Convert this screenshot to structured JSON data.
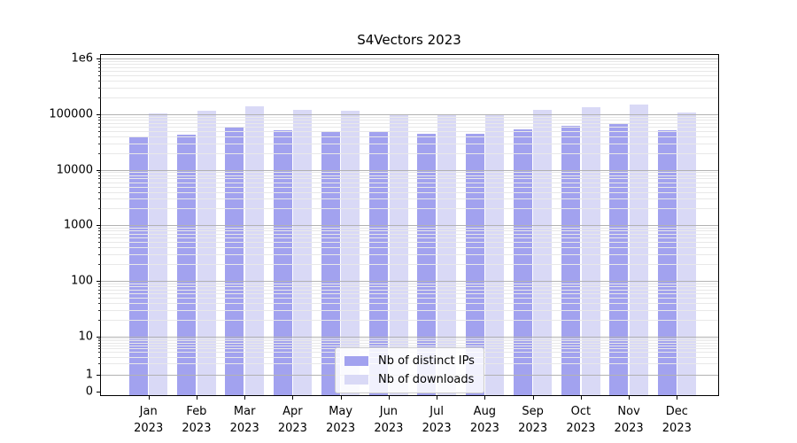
{
  "chart_data": {
    "type": "bar",
    "title": "S4Vectors 2023",
    "xlabel": "",
    "ylabel": "",
    "categories": [
      {
        "month": "Jan",
        "year": "2023"
      },
      {
        "month": "Feb",
        "year": "2023"
      },
      {
        "month": "Mar",
        "year": "2023"
      },
      {
        "month": "Apr",
        "year": "2023"
      },
      {
        "month": "May",
        "year": "2023"
      },
      {
        "month": "Jun",
        "year": "2023"
      },
      {
        "month": "Jul",
        "year": "2023"
      },
      {
        "month": "Aug",
        "year": "2023"
      },
      {
        "month": "Sep",
        "year": "2023"
      },
      {
        "month": "Oct",
        "year": "2023"
      },
      {
        "month": "Nov",
        "year": "2023"
      },
      {
        "month": "Dec",
        "year": "2023"
      }
    ],
    "series": [
      {
        "name": "Nb of distinct IPs",
        "color": "#a2a2ef",
        "values": [
          40000,
          42000,
          60000,
          51000,
          50000,
          47000,
          44000,
          45000,
          53000,
          62000,
          67000,
          51000
        ]
      },
      {
        "name": "Nb of downloads",
        "color": "#d9d9f6",
        "values": [
          104000,
          115000,
          138000,
          120000,
          116000,
          97000,
          97000,
          99000,
          119000,
          135000,
          147000,
          106000
        ]
      }
    ],
    "y_axis": {
      "scale": "symlog",
      "ylim": [
        0,
        1150000
      ],
      "grid": "horizontal major+minor, drawn over bars",
      "ticks": [
        {
          "label": "1e6",
          "value": 1000000
        },
        {
          "label": "100000",
          "value": 100000
        },
        {
          "label": "10000",
          "value": 10000
        },
        {
          "label": "1000",
          "value": 1000
        },
        {
          "label": "100",
          "value": 100
        },
        {
          "label": "10",
          "value": 10
        },
        {
          "label": "1",
          "value": 1
        },
        {
          "label": "0",
          "value": 0
        }
      ]
    },
    "legend": {
      "position": "lower center"
    }
  }
}
